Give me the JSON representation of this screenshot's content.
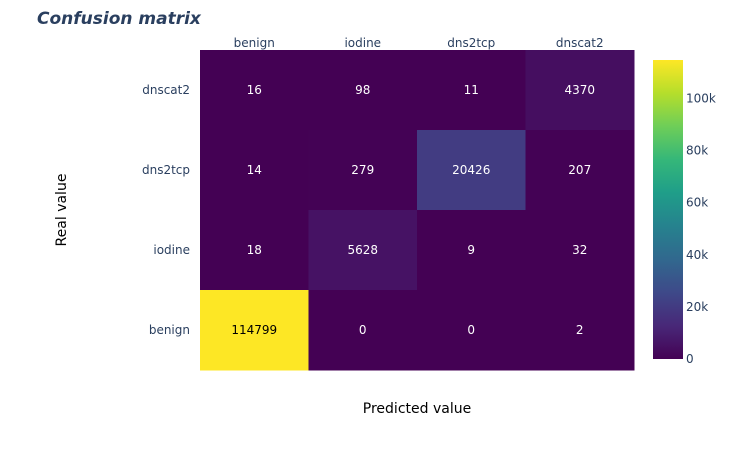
{
  "chart_data": {
    "type": "heatmap",
    "title": "Confusion matrix",
    "xlabel": "Predicted value",
    "ylabel": "Real value",
    "x_categories": [
      "benign",
      "iodine",
      "dns2tcp",
      "dnscat2"
    ],
    "y_categories": [
      "dnscat2",
      "dns2tcp",
      "iodine",
      "benign"
    ],
    "values": [
      [
        16,
        98,
        11,
        4370
      ],
      [
        14,
        279,
        20426,
        207
      ],
      [
        18,
        5628,
        9,
        32
      ],
      [
        114799,
        0,
        0,
        2
      ]
    ],
    "colorscale": "viridis",
    "zrange": [
      0,
      114799
    ],
    "colorbar_ticks": [
      "0",
      "20k",
      "40k",
      "60k",
      "80k",
      "100k"
    ],
    "colorbar_tick_values": [
      0,
      20000,
      40000,
      60000,
      80000,
      100000
    ],
    "x_axis_position": "top",
    "grid": false
  }
}
